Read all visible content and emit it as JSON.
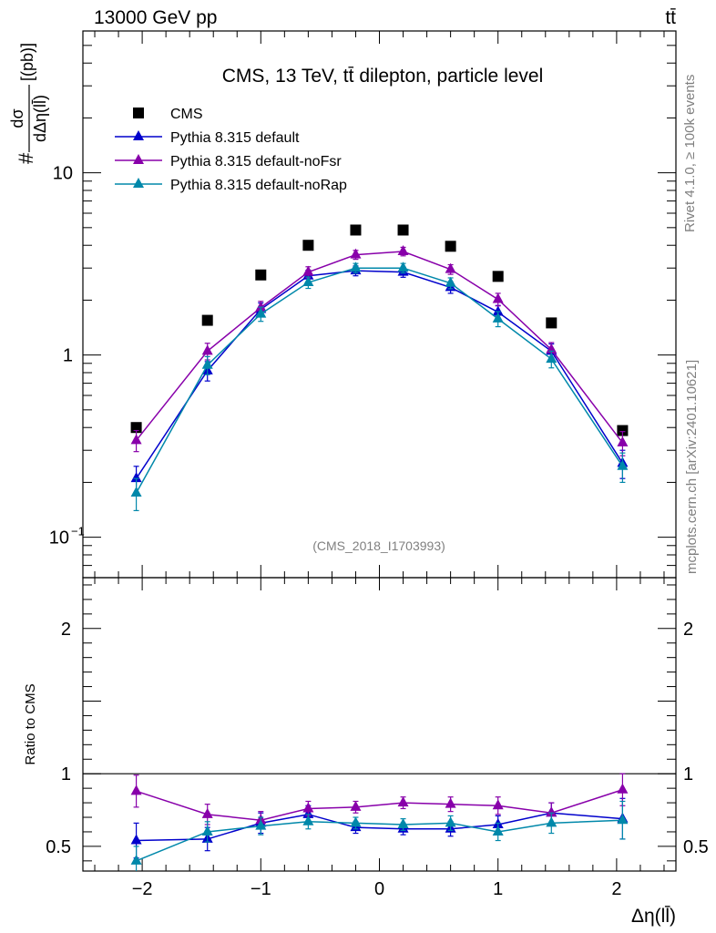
{
  "header": {
    "left": "13000 GeV pp",
    "right": "tt̄"
  },
  "side_text": {
    "rivet": "Rivet 4.1.0, ≥ 100k events",
    "source": "mcplots.cern.ch [arXiv:2401.10621]"
  },
  "colors": {
    "cms": "#000000",
    "default": "#0000cc",
    "noFsr": "#8800aa",
    "noRap": "#0088aa"
  },
  "chart_data": {
    "type": "scatter",
    "title": "CMS, 13 TeV, tt̄ dilepton, particle level",
    "watermark": "(CMS_2018_I1703993)",
    "xlabel": "Δη(ll̄)",
    "ylabel_main": {
      "prefix": "#",
      "numerator": "dσ",
      "denominator": "dΔη(ll̄)",
      "unit": "[(pb)]"
    },
    "ylabel_ratio": "Ratio to CMS",
    "xlim": [
      -2.5,
      2.5
    ],
    "ylim_main": [
      0.06,
      60
    ],
    "ylim_ratio": [
      0.33,
      2.35
    ],
    "yscale_main": "log",
    "x_ticks": [
      -2,
      -1,
      0,
      1,
      2
    ],
    "x_tick_labels": [
      "−2",
      "−1",
      "0",
      "1",
      "2"
    ],
    "y_main_tick_labels": [
      {
        "value": 0.1,
        "base": "10",
        "exp": "−1"
      },
      {
        "value": 1,
        "label": "1"
      },
      {
        "value": 10,
        "label": "10"
      }
    ],
    "y_ratio_ticks": [
      0.5,
      1,
      2
    ],
    "y_ratio_tick_labels": [
      "0.5",
      "1",
      "2"
    ],
    "x": [
      -2.05,
      -1.45,
      -1.0,
      -0.6,
      -0.2,
      0.2,
      0.6,
      1.0,
      1.45,
      2.05
    ],
    "legend": [
      {
        "name": "CMS",
        "key": "cms"
      },
      {
        "name": "Pythia 8.315 default",
        "key": "default"
      },
      {
        "name": "Pythia 8.315 default-noFsr",
        "key": "noFsr"
      },
      {
        "name": "Pythia 8.315 default-noRap",
        "key": "noRap"
      }
    ],
    "series": [
      {
        "name": "CMS",
        "key": "cms",
        "marker": "square",
        "line": false,
        "values": [
          0.4,
          1.55,
          2.75,
          4.0,
          4.85,
          4.85,
          3.95,
          2.7,
          1.5,
          0.385
        ]
      },
      {
        "name": "Pythia 8.315 default",
        "key": "default",
        "marker": "triangle",
        "line": true,
        "values": [
          0.21,
          0.82,
          1.78,
          2.72,
          2.9,
          2.85,
          2.35,
          1.72,
          1.05,
          0.255
        ],
        "errors": [
          0.035,
          0.1,
          0.15,
          0.2,
          0.18,
          0.18,
          0.17,
          0.15,
          0.1,
          0.045
        ],
        "ratio": [
          0.54,
          0.55,
          0.66,
          0.72,
          0.63,
          0.62,
          0.62,
          0.65,
          0.73,
          0.69
        ],
        "ratio_errors": [
          0.12,
          0.08,
          0.07,
          0.06,
          0.04,
          0.04,
          0.05,
          0.06,
          0.07,
          0.14
        ]
      },
      {
        "name": "Pythia 8.315 default-noFsr",
        "key": "noFsr",
        "marker": "triangle",
        "line": true,
        "values": [
          0.34,
          1.05,
          1.82,
          2.85,
          3.55,
          3.7,
          2.95,
          2.02,
          1.07,
          0.33
        ],
        "errors": [
          0.045,
          0.11,
          0.15,
          0.2,
          0.2,
          0.2,
          0.18,
          0.16,
          0.1,
          0.05
        ],
        "ratio": [
          0.88,
          0.72,
          0.68,
          0.76,
          0.77,
          0.8,
          0.79,
          0.78,
          0.73,
          0.89
        ],
        "ratio_errors": [
          0.11,
          0.07,
          0.06,
          0.05,
          0.04,
          0.04,
          0.05,
          0.06,
          0.07,
          0.11
        ]
      },
      {
        "name": "Pythia 8.315 default-noRap",
        "key": "noRap",
        "marker": "triangle",
        "line": true,
        "values": [
          0.175,
          0.88,
          1.68,
          2.5,
          3.0,
          3.0,
          2.48,
          1.58,
          0.95,
          0.245
        ],
        "errors": [
          0.035,
          0.1,
          0.15,
          0.18,
          0.18,
          0.18,
          0.17,
          0.15,
          0.1,
          0.045
        ],
        "ratio": [
          0.4,
          0.6,
          0.64,
          0.67,
          0.66,
          0.65,
          0.66,
          0.6,
          0.66,
          0.68
        ],
        "ratio_errors": [
          0.1,
          0.07,
          0.06,
          0.05,
          0.04,
          0.04,
          0.05,
          0.06,
          0.07,
          0.13
        ]
      }
    ]
  }
}
